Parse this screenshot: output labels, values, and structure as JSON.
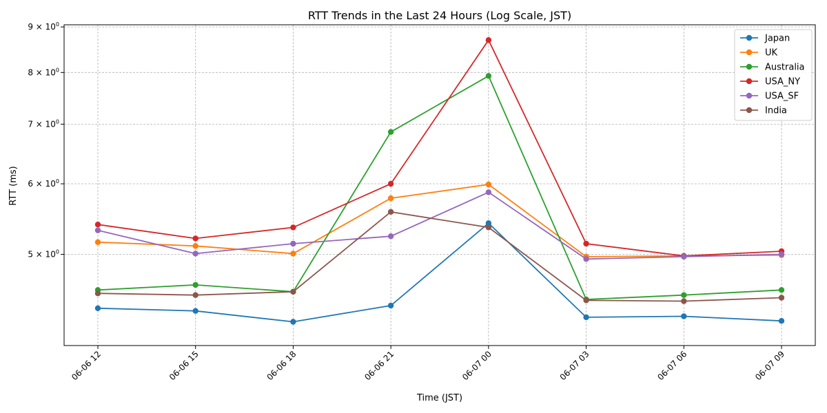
{
  "chart_data": {
    "type": "line",
    "title": "RTT Trends in the Last 24 Hours (Log Scale, JST)",
    "xlabel": "Time (JST)",
    "ylabel": "RTT (ms)",
    "y_scale": "log",
    "ylim": [
      3.95,
      9.05
    ],
    "y_ticks": [
      {
        "value": 5,
        "base": "5 × 10",
        "exp": "0"
      },
      {
        "value": 6,
        "base": "6 × 10",
        "exp": "0"
      },
      {
        "value": 7,
        "base": "7 × 10",
        "exp": "0"
      },
      {
        "value": 8,
        "base": "8 × 10",
        "exp": "0"
      },
      {
        "value": 9,
        "base": "9 × 10",
        "exp": "0"
      }
    ],
    "categories": [
      "06-06 12",
      "06-06 15",
      "06-06 18",
      "06-06 21",
      "06-07 00",
      "06-07 03",
      "06-07 06",
      "06-07 09"
    ],
    "grid": true,
    "legend_position": "top-right",
    "series": [
      {
        "name": "Japan",
        "color": "#1f77b4",
        "values": [
          4.35,
          4.32,
          4.2,
          4.38,
          5.42,
          4.25,
          4.26,
          4.21
        ]
      },
      {
        "name": "UK",
        "color": "#ff7f0e",
        "values": [
          5.16,
          5.11,
          5.01,
          5.78,
          5.99,
          4.97,
          4.98,
          4.99
        ]
      },
      {
        "name": "Australia",
        "color": "#2ca02c",
        "values": [
          4.56,
          4.62,
          4.54,
          6.86,
          7.93,
          4.45,
          4.5,
          4.56
        ]
      },
      {
        "name": "USA_NY",
        "color": "#d62728",
        "values": [
          5.4,
          5.21,
          5.36,
          6.0,
          8.7,
          5.14,
          4.98,
          5.04
        ]
      },
      {
        "name": "USA_SF",
        "color": "#9467bd",
        "values": [
          5.32,
          5.01,
          5.14,
          5.24,
          5.87,
          4.94,
          4.97,
          5.0
        ]
      },
      {
        "name": "India",
        "color": "#8c564b",
        "values": [
          4.52,
          4.5,
          4.54,
          5.58,
          5.36,
          4.44,
          4.43,
          4.47
        ]
      }
    ]
  }
}
